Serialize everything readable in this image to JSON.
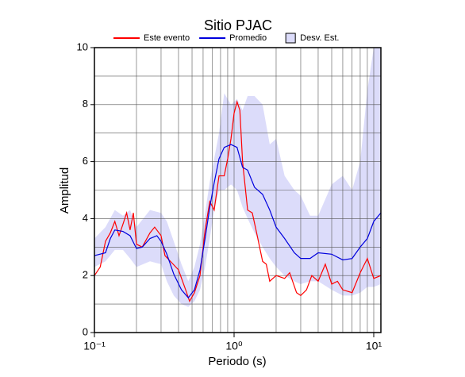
{
  "chart_data": {
    "type": "line",
    "title": "Sitio PJAC",
    "xlabel": "Periodo (s)",
    "ylabel": "Amplitud",
    "xscale": "log",
    "xlim": [
      0.1,
      11.25
    ],
    "ylim": [
      0,
      10
    ],
    "xticks": [
      {
        "value": 0.1,
        "label": "10⁻¹"
      },
      {
        "value": 1,
        "label": "10⁰"
      },
      {
        "value": 10,
        "label": "10¹"
      }
    ],
    "yticks": [
      0,
      2,
      4,
      6,
      8,
      10
    ],
    "y_minor_ticks": [
      1,
      3,
      5,
      7,
      9
    ],
    "grid": true,
    "legend": "top",
    "band": {
      "name": "Desv. Est.",
      "color": "#dcdcfa",
      "x": [
        0.1,
        0.12,
        0.14,
        0.16,
        0.18,
        0.2,
        0.25,
        0.3,
        0.33,
        0.37,
        0.42,
        0.47,
        0.52,
        0.57,
        0.62,
        0.67,
        0.72,
        0.78,
        0.85,
        0.95,
        1.05,
        1.15,
        1.25,
        1.4,
        1.6,
        1.8,
        2.0,
        2.3,
        2.7,
        3.0,
        3.5,
        4.0,
        5.0,
        6.0,
        7.0,
        8.0,
        9.0,
        10,
        11.25
      ],
      "upper": [
        3.3,
        3.7,
        4.3,
        4.1,
        4.3,
        3.7,
        4.3,
        4.2,
        3.9,
        3.2,
        2.4,
        1.8,
        2.3,
        3.1,
        4.2,
        5.3,
        6.1,
        7.0,
        8.4,
        8.0,
        8.2,
        7.8,
        8.3,
        8.3,
        8.0,
        6.6,
        6.8,
        5.5,
        5.0,
        4.8,
        4.1,
        4.1,
        5.2,
        5.5,
        5.0,
        6.0,
        8.5,
        10,
        10
      ],
      "lower": [
        2.3,
        2.5,
        2.9,
        2.9,
        2.6,
        2.3,
        2.5,
        2.4,
        1.8,
        1.3,
        1.0,
        0.9,
        1.1,
        1.5,
        2.3,
        3.3,
        4.3,
        5.0,
        5.0,
        5.2,
        5.0,
        4.4,
        4.0,
        3.5,
        3.0,
        2.6,
        2.3,
        2.0,
        1.8,
        1.7,
        1.8,
        1.8,
        1.5,
        1.3,
        1.3,
        1.4,
        1.6,
        1.6,
        1.7
      ]
    },
    "series": [
      {
        "name": "Este evento",
        "color": "#ff0000",
        "x": [
          0.1,
          0.11,
          0.12,
          0.13,
          0.14,
          0.15,
          0.16,
          0.17,
          0.18,
          0.19,
          0.2,
          0.22,
          0.25,
          0.27,
          0.3,
          0.32,
          0.35,
          0.4,
          0.45,
          0.48,
          0.52,
          0.57,
          0.62,
          0.67,
          0.72,
          0.78,
          0.85,
          0.9,
          0.95,
          1.0,
          1.05,
          1.1,
          1.15,
          1.25,
          1.35,
          1.45,
          1.6,
          1.7,
          1.8,
          2.0,
          2.3,
          2.5,
          2.8,
          3.0,
          3.3,
          3.6,
          4.0,
          4.5,
          5.0,
          5.5,
          6.0,
          7.0,
          8.0,
          9.0,
          10,
          11.25
        ],
        "values": [
          2.0,
          2.3,
          3.2,
          3.5,
          3.9,
          3.4,
          3.8,
          4.2,
          3.6,
          4.2,
          3.1,
          3.0,
          3.5,
          3.7,
          3.4,
          2.7,
          2.5,
          2.2,
          1.5,
          1.1,
          1.4,
          2.0,
          3.6,
          4.6,
          4.3,
          5.5,
          5.5,
          6.1,
          6.8,
          7.7,
          8.1,
          7.8,
          6.0,
          4.3,
          4.2,
          3.5,
          2.5,
          2.4,
          1.8,
          2.0,
          1.9,
          2.1,
          1.4,
          1.3,
          1.5,
          2.0,
          1.8,
          2.4,
          1.7,
          1.8,
          1.5,
          1.4,
          2.1,
          2.6,
          1.9,
          2.0
        ]
      },
      {
        "name": "Promedio",
        "color": "#0000dd",
        "x": [
          0.1,
          0.12,
          0.13,
          0.14,
          0.16,
          0.18,
          0.2,
          0.22,
          0.25,
          0.28,
          0.3,
          0.33,
          0.37,
          0.42,
          0.47,
          0.52,
          0.57,
          0.62,
          0.67,
          0.72,
          0.78,
          0.85,
          0.95,
          1.05,
          1.15,
          1.25,
          1.4,
          1.6,
          1.8,
          2.0,
          2.3,
          2.7,
          3.0,
          3.5,
          4.0,
          5.0,
          6.0,
          7.0,
          8.0,
          9.0,
          10,
          11.25
        ],
        "values": [
          2.7,
          2.8,
          3.3,
          3.6,
          3.55,
          3.4,
          2.95,
          3.0,
          3.3,
          3.4,
          3.2,
          2.75,
          2.05,
          1.5,
          1.22,
          1.5,
          2.2,
          3.3,
          4.4,
          5.25,
          6.1,
          6.5,
          6.6,
          6.5,
          5.8,
          5.7,
          5.1,
          4.85,
          4.3,
          3.7,
          3.3,
          2.8,
          2.6,
          2.6,
          2.8,
          2.75,
          2.55,
          2.6,
          3.0,
          3.3,
          3.9,
          4.2
        ]
      }
    ]
  }
}
